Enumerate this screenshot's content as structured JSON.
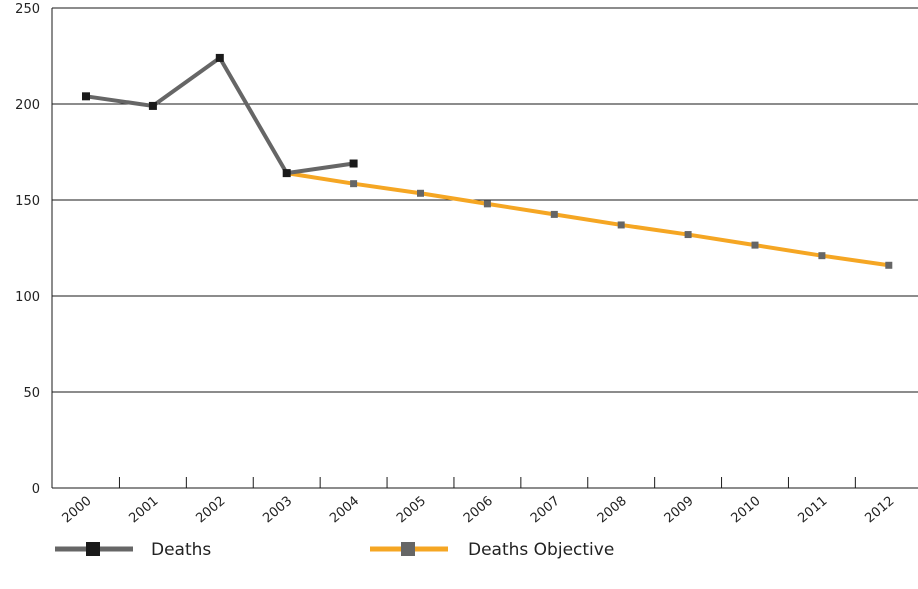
{
  "chart_data": {
    "type": "line",
    "title": "",
    "xlabel": "",
    "ylabel": "",
    "ylim": [
      0,
      250
    ],
    "yticks": [
      0,
      50,
      100,
      150,
      200,
      250
    ],
    "categories": [
      "2000",
      "2001",
      "2002",
      "2003",
      "2004",
      "2005",
      "2006",
      "2007",
      "2008",
      "2009",
      "2010",
      "2011",
      "2012"
    ],
    "grid": "horizontal",
    "legend_position": "bottom",
    "series": [
      {
        "name": "Deaths",
        "color": "#666666",
        "marker_color": "#1a1a1a",
        "points": [
          {
            "x": "2000",
            "y": 204
          },
          {
            "x": "2001",
            "y": 199
          },
          {
            "x": "2002",
            "y": 224
          },
          {
            "x": "2003",
            "y": 164
          },
          {
            "x": "2004",
            "y": 169
          }
        ]
      },
      {
        "name": "Deaths Objective",
        "color": "#f5a623",
        "marker_color": "#666666",
        "points": [
          {
            "x": "2003",
            "y": 164
          },
          {
            "x": "2004",
            "y": 158.5
          },
          {
            "x": "2005",
            "y": 153.5
          },
          {
            "x": "2006",
            "y": 148
          },
          {
            "x": "2007",
            "y": 142.5
          },
          {
            "x": "2008",
            "y": 137
          },
          {
            "x": "2009",
            "y": 132
          },
          {
            "x": "2010",
            "y": 126.5
          },
          {
            "x": "2011",
            "y": 121
          },
          {
            "x": "2012",
            "y": 116
          }
        ]
      }
    ]
  }
}
